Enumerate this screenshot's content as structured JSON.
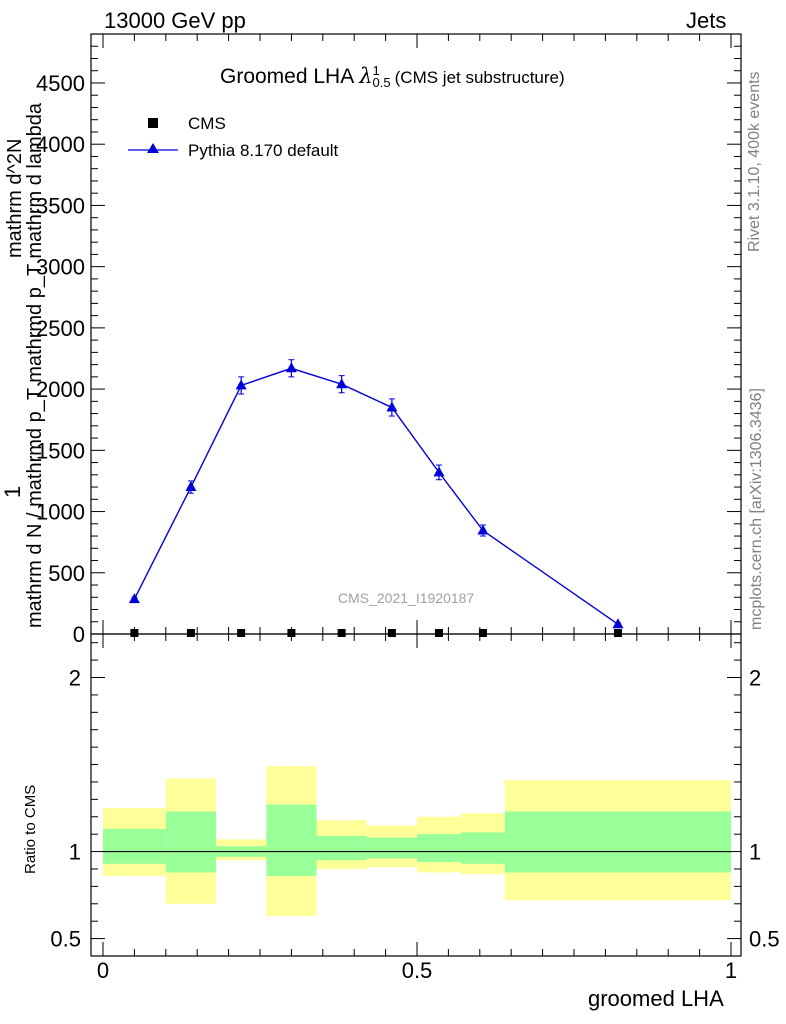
{
  "header": {
    "left_label": "13000 GeV pp",
    "right_label": "Jets"
  },
  "side_labels": {
    "rivet": "Rivet 3.1.10,  400k events",
    "mcplots": "mcplots.cern.ch [arXiv:1306.3436]"
  },
  "colors": {
    "pythia": "#0000d8",
    "cms": "#000000",
    "band_outer": "#ffff99",
    "band_inner": "#99ff99",
    "watermark": "#a0a0a0"
  },
  "chart_data": [
    {
      "type": "line",
      "title": "Groomed LHA",
      "title_lambda_sup": "1",
      "title_lambda_sub": "0.5",
      "title_suffix": "(CMS jet substructure)",
      "ylabel_numerator": "1",
      "ylabel_denominator": "mathrm d N / mathrmd p_T mathrmd p_T mathrm d lambda",
      "ylabel_extra": "mathrm d^2N",
      "watermark": "CMS_2021_I1920187",
      "xlim": [
        0,
        1
      ],
      "ylim": [
        0,
        4900
      ],
      "yticks": [
        "0",
        "500",
        "1000",
        "1500",
        "2000",
        "2500",
        "3000",
        "3500",
        "4000",
        "4500"
      ],
      "ytick_values": [
        0,
        500,
        1000,
        1500,
        2000,
        2500,
        3000,
        3500,
        4000,
        4500
      ],
      "legend": {
        "placement": "top-left"
      },
      "series": [
        {
          "name": "CMS",
          "marker": "square",
          "x": [
            0.05,
            0.14,
            0.22,
            0.3,
            0.38,
            0.46,
            0.535,
            0.605,
            0.82
          ],
          "y": [
            0,
            0,
            0,
            0,
            0,
            0,
            0,
            0,
            0
          ]
        },
        {
          "name": "Pythia 8.170 default",
          "marker": "triangle",
          "x": [
            0.05,
            0.14,
            0.22,
            0.3,
            0.38,
            0.46,
            0.535,
            0.605,
            0.82
          ],
          "y": [
            285,
            1200,
            2030,
            2170,
            2040,
            1850,
            1320,
            845,
            80
          ],
          "yerr": [
            15,
            50,
            70,
            70,
            70,
            70,
            60,
            45,
            10
          ]
        }
      ]
    },
    {
      "type": "area",
      "ylabel": "Ratio to CMS",
      "xlabel": "groomed LHA",
      "xlim": [
        0,
        1
      ],
      "xticks": [
        "0",
        "0.5",
        "1"
      ],
      "xtick_values": [
        0,
        0.5,
        1
      ],
      "ylim": [
        0.4,
        2.25
      ],
      "yticks": [
        "0.5",
        "1",
        "2"
      ],
      "ytick_values": [
        0.5,
        1,
        2
      ],
      "reference_line": 1,
      "bins": [
        {
          "lo": 0.0,
          "hi": 0.1,
          "inner": [
            0.93,
            1.13
          ],
          "outer": [
            0.86,
            1.25
          ]
        },
        {
          "lo": 0.1,
          "hi": 0.18,
          "inner": [
            0.88,
            1.23
          ],
          "outer": [
            0.7,
            1.42
          ]
        },
        {
          "lo": 0.18,
          "hi": 0.26,
          "inner": [
            0.97,
            1.03
          ],
          "outer": [
            0.95,
            1.07
          ]
        },
        {
          "lo": 0.26,
          "hi": 0.34,
          "inner": [
            0.86,
            1.27
          ],
          "outer": [
            0.63,
            1.49
          ]
        },
        {
          "lo": 0.34,
          "hi": 0.42,
          "inner": [
            0.95,
            1.09
          ],
          "outer": [
            0.9,
            1.18
          ]
        },
        {
          "lo": 0.42,
          "hi": 0.5,
          "inner": [
            0.96,
            1.08
          ],
          "outer": [
            0.91,
            1.15
          ]
        },
        {
          "lo": 0.5,
          "hi": 0.57,
          "inner": [
            0.94,
            1.1
          ],
          "outer": [
            0.88,
            1.2
          ]
        },
        {
          "lo": 0.57,
          "hi": 0.64,
          "inner": [
            0.93,
            1.11
          ],
          "outer": [
            0.87,
            1.22
          ]
        },
        {
          "lo": 0.64,
          "hi": 1.0,
          "inner": [
            0.88,
            1.23
          ],
          "outer": [
            0.72,
            1.41
          ]
        }
      ]
    }
  ]
}
